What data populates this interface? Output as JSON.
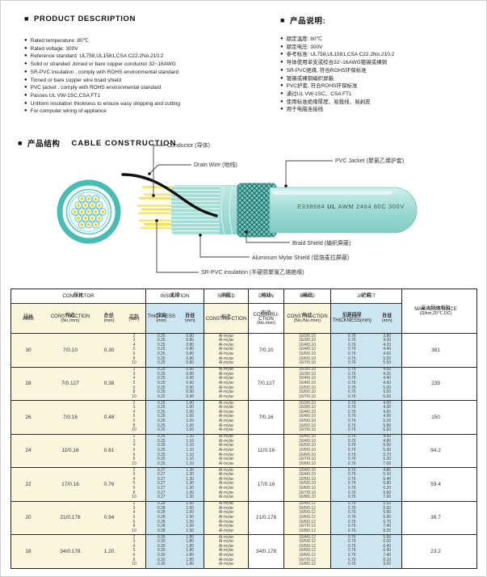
{
  "icons": {
    "bullet": "●",
    "section_marker": "■"
  },
  "colors": {
    "yellow": "#FBF6DE",
    "blue": "#CDE5F0",
    "white": "#FFFFFF",
    "teal": "#4CBDB5",
    "jacket_teal": "#9FDAD3",
    "core_yellow": "#F6CF13"
  },
  "desc_en": {
    "title": "PRODUCT  DESCRIPTION",
    "items": [
      "Rated temperature: 80℃",
      "Rated voltage: 300V",
      "Reference standard: UL758,UL1581,CSA C22.2No.210.2",
      "Solid or stranded ,tinned or bare copper conductor 32~16AWG",
      "SR-PVC insulation , comply with ROHS environmental standard",
      "Tinned or bare copper wire braid shield",
      "PVC jacket , comply with ROHS environmental standard",
      "Passes UL VW-1SC,CSA FT1",
      "Uniform insulation thickness to ensure easy stripping and cutting",
      "For computer wiring of appliance"
    ]
  },
  "desc_zh": {
    "title": "产品说明:",
    "items": [
      "额定温度: 80℃",
      "额定电压: 300V",
      "参考标准: UL758,UL1581,CSA C22.2No.210.2",
      "导体使用单支或绞合32~16AWG镀锡或裸铜",
      "SR-PVC绝缘, 符合ROHS环保标准",
      "镀锡或裸铜编织屏蔽",
      "PVC护套, 符合ROHS环保标准",
      "通过UL VW-1SC、CSA FT1",
      "使用标准绝缘厚度、易裁线、易剥皮",
      "用于电脑连接线"
    ]
  },
  "construction": {
    "title_zh": "产品结构",
    "title_en": "CABLE  CONSTRUCTION",
    "labels": {
      "conductor": "Conductor (导体)",
      "drain": "Drain Wire (地线)",
      "jacket": "PVC Jacket (聚氯乙烯护套)",
      "braid": "Braid Shield (编织屏蔽)",
      "mylar": "Aluminum Mylar Shield (铝箔麦拉屏蔽)",
      "insulation": "SR-PVC insulation (半硬质聚氯乙烯绝缘)"
    },
    "jacket_print": {
      "left": "E338684",
      "logo": "UL",
      "right": "AWM 2464 80C 300V"
    }
  },
  "table": {
    "groups": [
      {
        "zh": "导体",
        "en": "CONDUCTOR"
      },
      {
        "zh": "绝缘",
        "en": "INSULATION"
      },
      {
        "zh": "屏蔽",
        "en": "SHIELD"
      },
      {
        "zh": "地线",
        "en": "DRAIN"
      },
      {
        "zh": "编织",
        "en": "BRAID"
      },
      {
        "zh": "护套",
        "en": "JACKET"
      },
      {
        "zh": "",
        "en": ""
      }
    ],
    "columns": [
      {
        "zh": "规格",
        "en": "AWG",
        "sub": ""
      },
      {
        "zh": "构造",
        "en": "CONSTRUCTION",
        "sub": "(No./mm)"
      },
      {
        "zh": "外径",
        "en": "O.D.",
        "sub": "(mm)"
      },
      {
        "zh": "芯数",
        "en": "(No.)",
        "sub": ""
      },
      {
        "zh": "厚度",
        "en": "THICKNESS",
        "sub": "(mm)"
      },
      {
        "zh": "外径",
        "en": "O.D",
        "sub": "(mm)"
      },
      {
        "zh": "构造",
        "en": "CONSTRU-CTION",
        "sub": ""
      },
      {
        "zh": "构造",
        "en": "CONSTRU-CTION",
        "sub": "(No./mm)"
      },
      {
        "zh": "构造",
        "en": "CONSTRU-CTION",
        "sub": "(No./No./mm)"
      },
      {
        "zh": "护套厚度",
        "en": "JACKET THICKNESS(mm)",
        "sub": ""
      },
      {
        "zh": "外径",
        "en": "O.D",
        "sub": "(mm)"
      },
      {
        "zh": "最大导体电阻",
        "en": "MAX RESISTANCE",
        "sub": "(Ω/km,20℃,DC)"
      }
    ],
    "rows": [
      [
        "30",
        "7/0.10",
        "0.30",
        [
          "2",
          "3",
          "4",
          "5",
          "6",
          "8",
          "10"
        ],
        [
          "0.25",
          "0.25",
          "0.25",
          "0.25",
          "0.25",
          "0.25",
          "0.25"
        ],
        [
          "0.80",
          "0.80",
          "0.80",
          "0.80",
          "0.80",
          "0.80",
          "0.80"
        ],
        [
          "Al-mylar",
          "Al-mylar",
          "Al-mylar",
          "Al-mylar",
          "Al-mylar",
          "Al-mylar",
          "Al-mylar"
        ],
        "7/0.10",
        [
          "16/3/0.10",
          "16/3/0.10",
          "16/4/0.10",
          "16/4/0.10",
          "16/5/0.10",
          "16/6/0.10",
          "16/7/0.10"
        ],
        [
          "0.76",
          "0.76",
          "0.76",
          "0.76",
          "0.76",
          "0.76",
          "0.76"
        ],
        [
          "3.80",
          "4.00",
          "4.20",
          "4.40",
          "4.60",
          "5.00",
          "5.50"
        ],
        "381"
      ],
      [
        "28",
        "7/0.127",
        "0.38",
        [
          "2",
          "3",
          "4",
          "5",
          "6",
          "8",
          "10"
        ],
        [
          "0.25",
          "0.25",
          "0.25",
          "0.25",
          "0.25",
          "0.25",
          "0.25"
        ],
        [
          "0.90",
          "0.90",
          "0.90",
          "0.90",
          "0.90",
          "0.90",
          "0.90"
        ],
        [
          "Al-mylar",
          "Al-mylar",
          "Al-mylar",
          "Al-mylar",
          "Al-mylar",
          "Al-mylar",
          "Al-mylar"
        ],
        "7/0.127",
        [
          "16/3/0.10",
          "16/3/0.10",
          "16/4/0.10",
          "16/4/0.10",
          "16/5/0.10",
          "16/6/0.10",
          "16/7/0.10"
        ],
        [
          "0.76",
          "0.76",
          "0.76",
          "0.76",
          "0.76",
          "0.76",
          "0.76"
        ],
        [
          "4.00",
          "4.20",
          "4.40",
          "4.60",
          "5.00",
          "5.50",
          "6.00"
        ],
        "239"
      ],
      [
        "26",
        "7/0.16",
        "0.48",
        [
          "2",
          "3",
          "4",
          "5",
          "6",
          "8",
          "10"
        ],
        [
          "0.25",
          "0.25",
          "0.25",
          "0.25",
          "0.25",
          "0.25",
          "0.25"
        ],
        [
          "1.00",
          "1.00",
          "1.00",
          "1.00",
          "1.00",
          "1.00",
          "1.00"
        ],
        [
          "Al-mylar",
          "Al-mylar",
          "Al-mylar",
          "Al-mylar",
          "Al-mylar",
          "Al-mylar",
          "Al-mylar"
        ],
        "7/0.16",
        [
          "16/3/0.10",
          "16/3/0.10",
          "16/4/0.10",
          "16/4/0.10",
          "16/5/0.10",
          "16/6/0.10",
          "16/7/0.10"
        ],
        [
          "0.76",
          "0.76",
          "0.76",
          "0.76",
          "0.76",
          "0.76",
          "0.76"
        ],
        [
          "4.00",
          "4.30",
          "4.60",
          "4.90",
          "5.20",
          "5.80",
          "6.50"
        ],
        "150"
      ],
      [
        "24",
        "11/0.16",
        "0.61",
        [
          "2",
          "3",
          "4",
          "5",
          "6",
          "8",
          "10"
        ],
        [
          "0.25",
          "0.25",
          "0.25",
          "0.25",
          "0.25",
          "0.25",
          "0.25"
        ],
        [
          "1.10",
          "1.10",
          "1.10",
          "1.10",
          "1.10",
          "1.10",
          "1.10"
        ],
        [
          "Al-mylar",
          "Al-mylar",
          "Al-mylar",
          "Al-mylar",
          "Al-mylar",
          "Al-mylar",
          "Al-mylar"
        ],
        "11/0.16",
        [
          "16/4/0.10",
          "16/4/0.10",
          "16/5/0.10",
          "16/5/0.10",
          "16/6/0.10",
          "16/7/0.10",
          "16/8/0.10"
        ],
        [
          "0.76",
          "0.76",
          "0.76",
          "0.76",
          "0.76",
          "0.76",
          "0.76"
        ],
        [
          "4.50",
          "4.80",
          "5.00",
          "5.30",
          "5.70",
          "6.30",
          "7.00"
        ],
        "94.2"
      ],
      [
        "22",
        "17/0.16",
        "0.76",
        [
          "2",
          "3",
          "4",
          "5",
          "6",
          "8",
          "10"
        ],
        [
          "0.27",
          "0.27",
          "0.27",
          "0.27",
          "0.27",
          "0.27",
          "0.27"
        ],
        [
          "1.30",
          "1.30",
          "1.30",
          "1.30",
          "1.30",
          "1.30",
          "1.30"
        ],
        [
          "Al-mylar",
          "Al-mylar",
          "Al-mylar",
          "Al-mylar",
          "Al-mylar",
          "Al-mylar",
          "Al-mylar"
        ],
        "17/0.16",
        [
          "16/4/0.10",
          "16/4/0.10",
          "16/5/0.10",
          "16/5/0.10",
          "16/6/0.10",
          "16/7/0.10",
          "16/8/0.10"
        ],
        [
          "0.76",
          "0.76",
          "0.76",
          "0.76",
          "0.76",
          "0.76",
          "0.76"
        ],
        [
          "4.80",
          "5.10",
          "5.40",
          "5.80",
          "6.20",
          "6.90",
          "7.60"
        ],
        "59.4"
      ],
      [
        "20",
        "21/0.178",
        "0.94",
        [
          "2",
          "3",
          "4",
          "5",
          "6",
          "8",
          "10"
        ],
        [
          "0.28",
          "0.28",
          "0.28",
          "0.28",
          "0.28",
          "0.28",
          "0.28"
        ],
        [
          "1.50",
          "1.50",
          "1.50",
          "1.50",
          "1.50",
          "1.50",
          "1.50"
        ],
        [
          "Al-mylar",
          "Al-mylar",
          "Al-mylar",
          "Al-mylar",
          "Al-mylar",
          "Al-mylar",
          "Al-mylar"
        ],
        "21/0.178",
        [
          "16/4/0.12",
          "16/5/0.12",
          "16/5/0.12",
          "16/6/0.12",
          "16/6/0.12",
          "16/7/0.12",
          "16/8/0.12"
        ],
        [
          "0.76",
          "0.76",
          "0.76",
          "0.76",
          "0.76",
          "0.76",
          "0.76"
        ],
        [
          "5.10",
          "5.50",
          "5.90",
          "6.30",
          "6.70",
          "7.40",
          "8.20"
        ],
        "36.7"
      ],
      [
        "18",
        "34/0.178",
        "1.20",
        [
          "2",
          "3",
          "4",
          "5",
          "6",
          "8",
          "10"
        ],
        [
          "0.30",
          "0.30",
          "0.30",
          "0.30",
          "0.30",
          "0.30",
          "0.30"
        ],
        [
          "1.80",
          "1.80",
          "1.80",
          "1.80",
          "1.80",
          "1.80",
          "1.80"
        ],
        [
          "Al-mylar",
          "Al-mylar",
          "Al-mylar",
          "Al-mylar",
          "Al-mylar",
          "Al-mylar",
          "Al-mylar"
        ],
        "34/0.178",
        [
          "16/4/0.12",
          "16/5/0.12",
          "16/5/0.12",
          "16/6/0.12",
          "16/6/0.12",
          "16/7/0.12",
          "16/8/0.12"
        ],
        [
          "0.76",
          "0.76",
          "0.76",
          "0.76",
          "0.76",
          "0.76",
          "0.76"
        ],
        [
          "5.60",
          "6.00",
          "6.40",
          "6.90",
          "7.40",
          "8.10",
          "9.00"
        ],
        "23.2"
      ]
    ]
  }
}
